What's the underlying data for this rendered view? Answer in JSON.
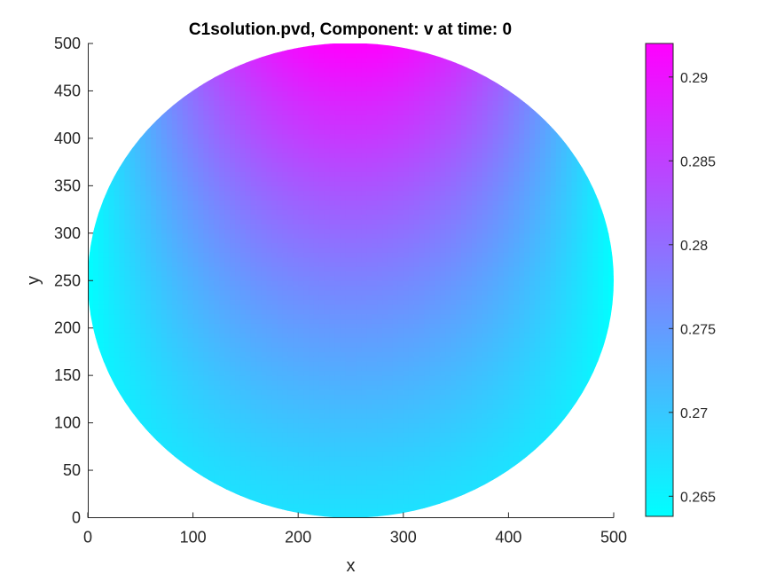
{
  "chart_data": {
    "type": "heatmap",
    "title": "C1solution.pvd, Component: v at time: 0",
    "xlabel": "x",
    "ylabel": "y",
    "xlim": [
      0,
      500
    ],
    "ylim": [
      0,
      500
    ],
    "x_ticks": [
      0,
      100,
      200,
      300,
      400,
      500
    ],
    "y_ticks": [
      0,
      50,
      100,
      150,
      200,
      250,
      300,
      350,
      400,
      450,
      500
    ],
    "domain": {
      "shape": "disk",
      "center": [
        250,
        250
      ],
      "radius": 250
    },
    "field": {
      "min_value": 0.2638,
      "max_value": 0.292,
      "top_value": 0.292,
      "center_value": 0.2775,
      "bottom_value": 0.267,
      "side_value": 0.2638
    },
    "colormap": {
      "name": "cool",
      "low_color": "#00ffff",
      "high_color": "#ff00ff"
    },
    "colorbar": {
      "placement": "right",
      "ticks": [
        "0.265",
        "0.27",
        "0.275",
        "0.28",
        "0.285",
        "0.29"
      ],
      "min": 0.2638,
      "max": 0.292
    },
    "grid": false
  }
}
